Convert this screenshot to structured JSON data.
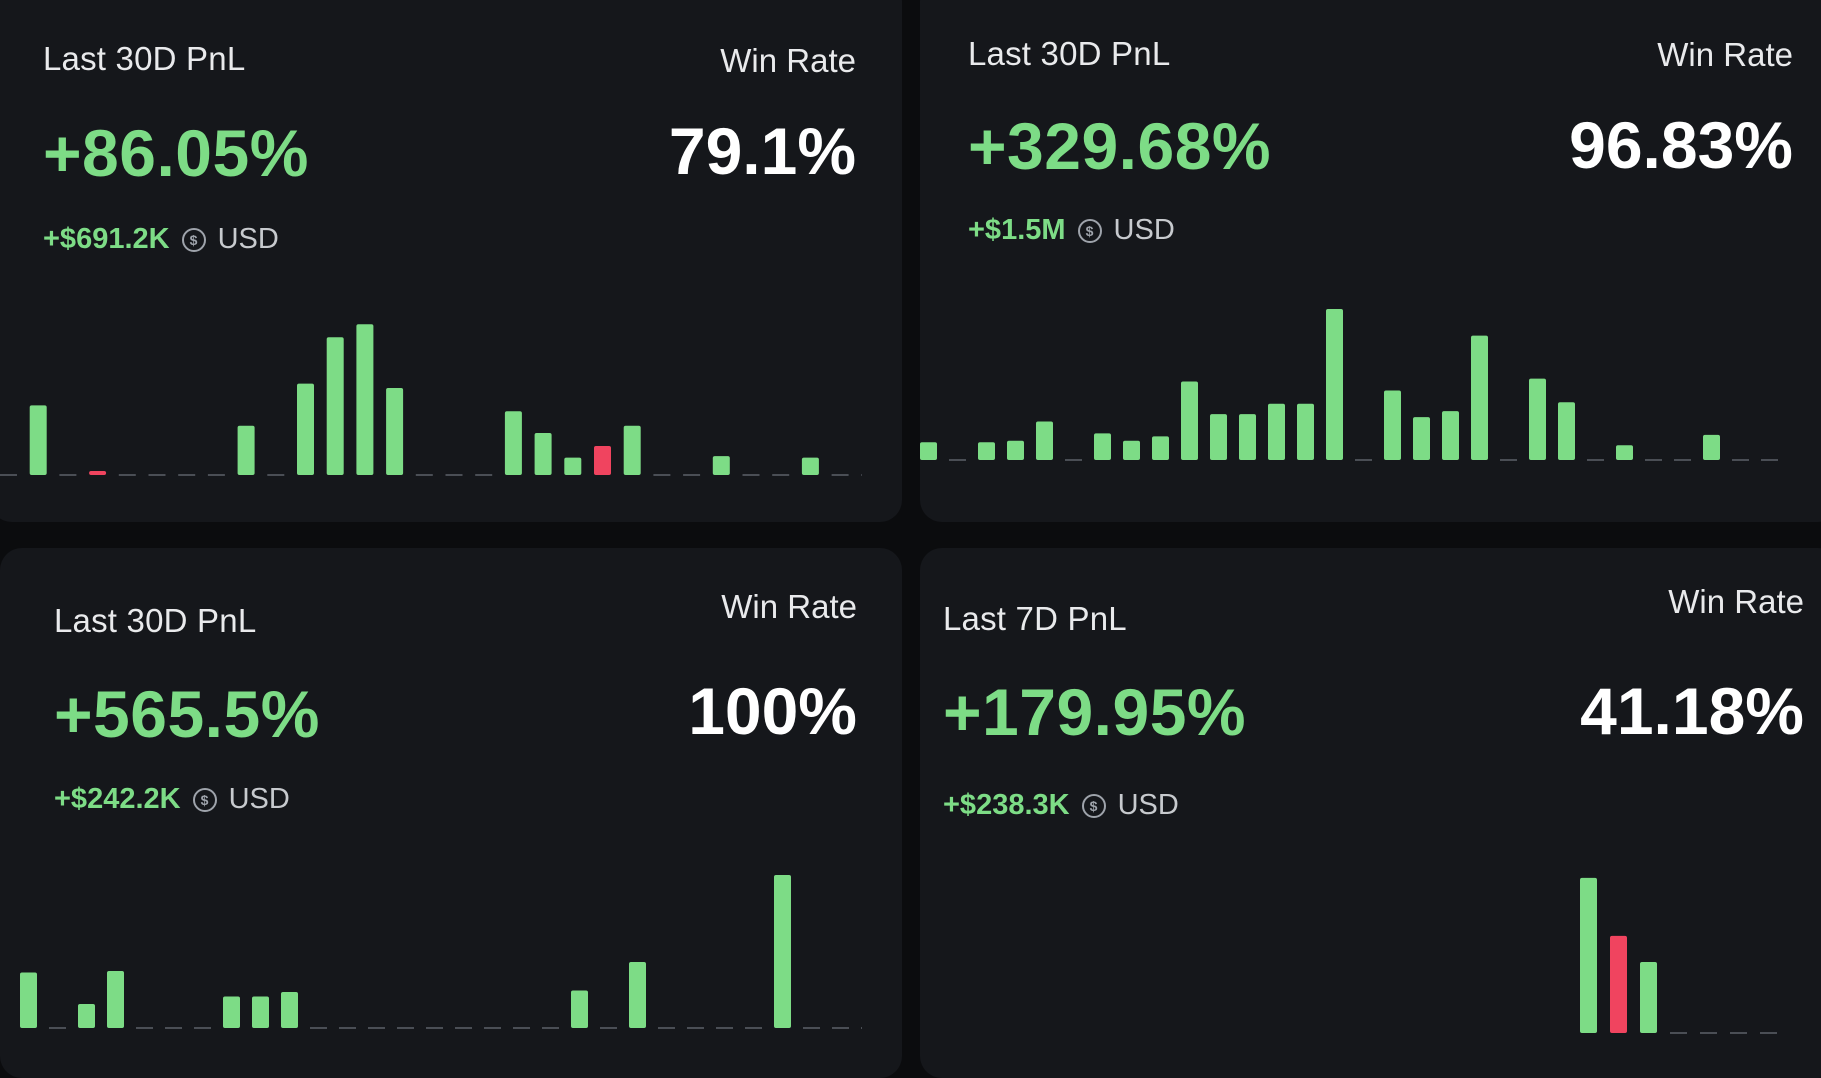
{
  "colors": {
    "background": "#0b0c0e",
    "card": "#15171b",
    "positive": "#7ddc86",
    "negative": "#f0445f",
    "baseline": "#4a4e55",
    "text": "#e9eaec"
  },
  "cards": [
    {
      "pnl_label": "Last 30D PnL",
      "pnl_value": "+86.05%",
      "amount": "+$691.2K",
      "currency": "USD",
      "currency_icon": "currency-swap-icon",
      "win_rate_label": "Win Rate",
      "win_rate_value": "79.1%"
    },
    {
      "pnl_label": "Last 30D PnL",
      "pnl_value": "+329.68%",
      "amount": "+$1.5M",
      "currency": "USD",
      "currency_icon": "currency-swap-icon",
      "win_rate_label": "Win Rate",
      "win_rate_value": "96.83%"
    },
    {
      "pnl_label": "Last 30D PnL",
      "pnl_value": "+565.5%",
      "amount": "+$242.2K",
      "currency": "USD",
      "currency_icon": "currency-swap-icon",
      "win_rate_label": "Win Rate",
      "win_rate_value": "100%"
    },
    {
      "pnl_label": "Last 7D PnL",
      "pnl_value": "+179.95%",
      "amount": "+$238.3K",
      "currency": "USD",
      "currency_icon": "currency-swap-icon",
      "win_rate_label": "Win Rate",
      "win_rate_value": "41.18%"
    }
  ],
  "chart_data": [
    {
      "type": "bar",
      "values": [
        0,
        48,
        0,
        -2,
        0,
        0,
        0,
        0,
        34,
        0,
        63,
        95,
        104,
        60,
        0,
        0,
        0,
        44,
        29,
        12,
        -20,
        34,
        0,
        0,
        13,
        0,
        0,
        12,
        0,
        0
      ]
    },
    {
      "type": "bar",
      "values": [
        12,
        0,
        12,
        13,
        26,
        0,
        18,
        13,
        16,
        53,
        31,
        31,
        38,
        38,
        102,
        0,
        47,
        29,
        33,
        84,
        0,
        55,
        39,
        0,
        10,
        0,
        0,
        17,
        0,
        0
      ]
    },
    {
      "type": "bar",
      "values": [
        37,
        0,
        16,
        38,
        0,
        0,
        0,
        21,
        21,
        24,
        0,
        0,
        0,
        0,
        0,
        0,
        0,
        0,
        0,
        25,
        0,
        44,
        0,
        0,
        0,
        0,
        102,
        0,
        0,
        0
      ]
    },
    {
      "type": "bar",
      "values": [
        107,
        -67,
        49,
        0,
        0,
        0,
        0
      ]
    }
  ]
}
